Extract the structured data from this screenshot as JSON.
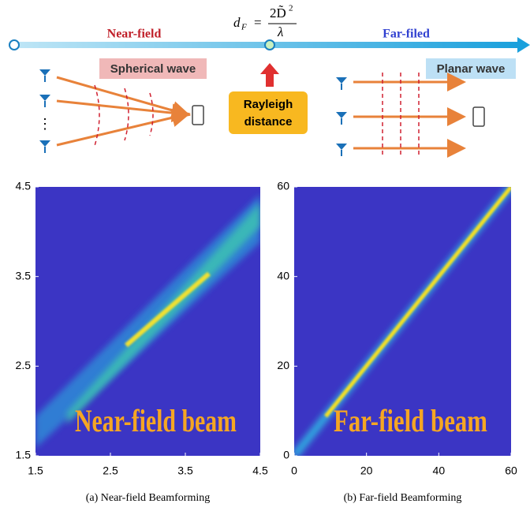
{
  "diagram": {
    "near_field": "Near-field",
    "far_field": "Far-filed",
    "formula": {
      "lhs": "d",
      "lhs_sub": "F",
      "equals": "=",
      "numerator": "2D̃",
      "numerator_sup": "2",
      "denominator": "λ"
    },
    "spherical_wave": "Spherical wave",
    "planar_wave": "Planar wave",
    "rayleigh": [
      "Rayleigh",
      "distance"
    ]
  },
  "plots": [
    {
      "caption": "(a) Near-field Beamforming",
      "overlay": "Near-field beam",
      "xlim": [
        1.5,
        4.5
      ],
      "ylim": [
        1.5,
        4.5
      ],
      "xticks": [
        1.5,
        2.5,
        3.5,
        4.5
      ],
      "yticks": [
        1.5,
        2.5,
        3.5,
        4.5
      ]
    },
    {
      "caption": "(b) Far-field Beamforming",
      "overlay": "Far-field beam",
      "xlim": [
        0,
        60
      ],
      "ylim": [
        0,
        60
      ],
      "xticks": [
        0,
        20,
        40,
        60
      ],
      "yticks": [
        0,
        20,
        40,
        60
      ]
    }
  ]
}
